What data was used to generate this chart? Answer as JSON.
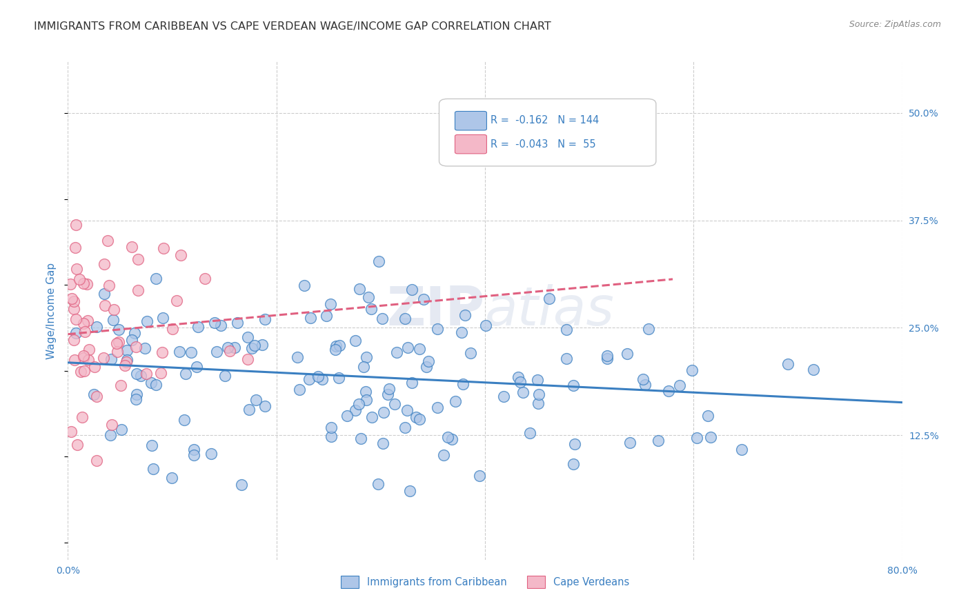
{
  "title": "IMMIGRANTS FROM CARIBBEAN VS CAPE VERDEAN WAGE/INCOME GAP CORRELATION CHART",
  "source_text": "Source: ZipAtlas.com",
  "ylabel": "Wage/Income Gap",
  "x_min": 0.0,
  "x_max": 0.8,
  "y_min": -0.02,
  "y_max": 0.56,
  "x_ticks": [
    0.0,
    0.2,
    0.4,
    0.6,
    0.8
  ],
  "x_tick_labels": [
    "0.0%",
    "",
    "",
    "",
    "80.0%"
  ],
  "y_tick_labels_right": [
    "50.0%",
    "37.5%",
    "25.0%",
    "12.5%"
  ],
  "y_ticks_right": [
    0.5,
    0.375,
    0.25,
    0.125
  ],
  "caribbean_color": "#aec6e8",
  "cape_verdean_color": "#f4b8c8",
  "caribbean_line_color": "#3a7fc1",
  "cape_verdean_line_color": "#e06080",
  "caribbean_R": -0.162,
  "caribbean_N": 144,
  "cape_verdean_R": -0.043,
  "cape_verdean_N": 55,
  "watermark_zip": "ZIP",
  "watermark_atlas": "atlas",
  "legend_label_caribbean": "Immigrants from Caribbean",
  "legend_label_cape_verdean": "Cape Verdeans",
  "background_color": "#ffffff",
  "grid_color": "#cccccc",
  "title_color": "#333333",
  "axis_label_color": "#3a7fc1",
  "caribbean_seed": 12,
  "cape_verdean_seed": 99
}
